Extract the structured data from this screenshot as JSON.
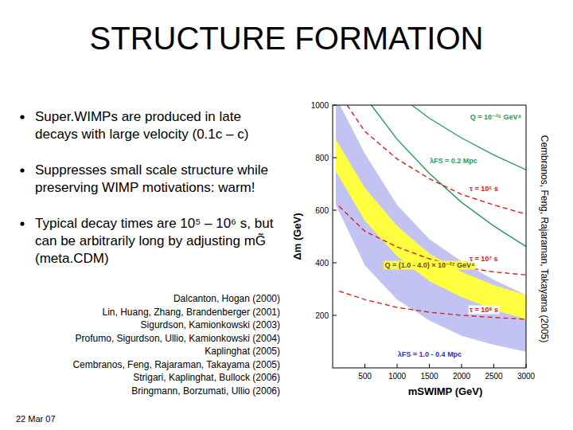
{
  "slide": {
    "title": "STRUCTURE FORMATION",
    "bullets": [
      "Super.WIMPs are produced in late decays with large velocity (0.1c – c)",
      "Suppresses small scale structure while preserving WIMP motivations: warm!",
      "Typical decay times are 10⁵ – 10⁶ s, but can be arbitrarily long by adjusting mG̃ (meta.CDM)"
    ],
    "references": [
      "Dalcanton, Hogan (2000)",
      "Lin, Huang, Zhang, Brandenberger (2001)",
      "Sigurdson, Kamionkowski (2003)",
      "Profumo, Sigurdson, Ullio, Kamionkowski (2004)",
      "Kaplinghat (2005)",
      "Cembranos, Feng, Rajaraman, Takayama (2005)",
      "Strigari, Kaplinghat, Bullock (2006)",
      "Bringmann, Borzumati, Ullio (2006)"
    ],
    "date": "22 Mar 07",
    "credit": "Cembranos, Feng, Rajaraman, Takayama (2005)"
  },
  "chart_data": {
    "type": "line",
    "xlabel": "mSWIMP (GeV)",
    "ylabel": "Δm (GeV)",
    "xlim": [
      0,
      3000
    ],
    "ylim": [
      0,
      1000
    ],
    "xticks": [
      500,
      1000,
      1500,
      2000,
      2500,
      3000
    ],
    "yticks": [
      200,
      400,
      600,
      800,
      1000
    ],
    "grid": false,
    "series": [
      {
        "name": "λFS = 1.0 - 0.4 Mpc",
        "type": "band",
        "color": "#c3c3f3",
        "x": [
          50,
          500,
          1000,
          1500,
          2000,
          2500,
          3000
        ],
        "upper": [
          1030,
          815,
          620,
          490,
          405,
          335,
          277
        ],
        "lower": [
          620,
          390,
          260,
          180,
          122,
          88,
          61
        ]
      },
      {
        "name": "Q = (1.0 - 4.0) × 10⁻²⁷ GeV⁴",
        "type": "band",
        "color": "#ffff40",
        "x": [
          50,
          500,
          1000,
          1500,
          2000,
          2500,
          3000
        ],
        "upper": [
          870,
          685,
          540,
          435,
          365,
          315,
          277
        ],
        "lower": [
          748,
          560,
          425,
          330,
          270,
          222,
          185
        ]
      },
      {
        "name": "λFS = 0.2 Mpc",
        "type": "line",
        "color": "#2a9a5a",
        "line_style": "solid",
        "x": [
          600,
          1000,
          1500,
          2000,
          2500,
          3000
        ],
        "values": [
          1000,
          870,
          740,
          630,
          540,
          462
        ]
      },
      {
        "name": "Q = 10⁻²⁵ GeV⁴",
        "type": "line",
        "color": "#2a9a5a",
        "line_style": "solid",
        "x": [
          1228,
          1500,
          2000,
          2500,
          3000
        ],
        "values": [
          1000,
          950,
          875,
          810,
          754
        ]
      },
      {
        "name": "τ = 10⁶ s",
        "type": "line",
        "color": "#d42020",
        "line_style": "dashed",
        "x": [
          224,
          500,
          1000,
          1500,
          2000,
          2500,
          3000
        ],
        "values": [
          1000,
          900,
          795,
          720,
          660,
          620,
          585
        ]
      },
      {
        "name": "τ = 10⁷ s",
        "type": "line",
        "color": "#d42020",
        "line_style": "dashed",
        "x": [
          100,
          500,
          1000,
          1500,
          2000,
          2500,
          3000
        ],
        "values": [
          615,
          520,
          460,
          415,
          385,
          365,
          354
        ]
      },
      {
        "name": "τ = 10⁸ s",
        "type": "line",
        "color": "#d42020",
        "line_style": "dashed",
        "x": [
          100,
          500,
          1000,
          1500,
          2000,
          2500,
          3000
        ],
        "values": [
          292,
          260,
          230,
          212,
          200,
          192,
          185
        ]
      }
    ]
  }
}
